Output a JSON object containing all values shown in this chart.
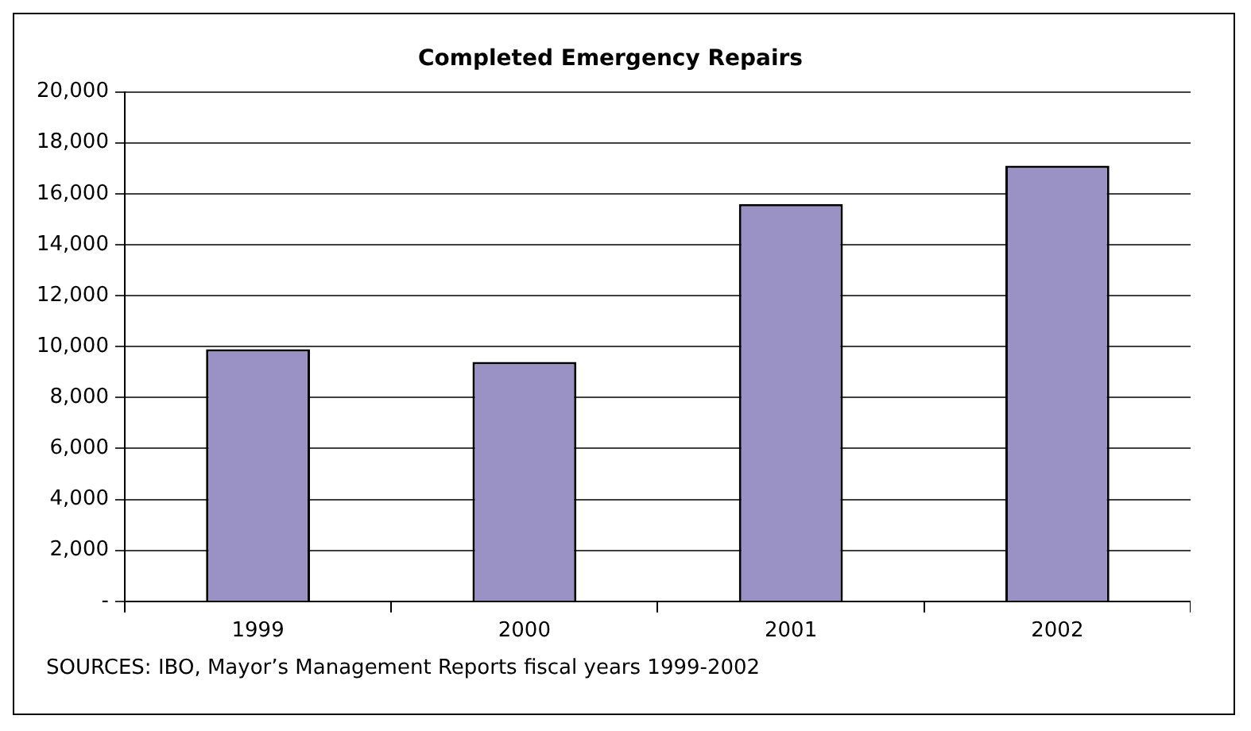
{
  "chart_data": {
    "type": "bar",
    "title": "Completed Emergency Repairs",
    "categories": [
      "1999",
      "2000",
      "2001",
      "2002"
    ],
    "values": [
      9900,
      9400,
      15600,
      17100
    ],
    "color": "#9a91c4",
    "ylim": [
      0,
      20000
    ],
    "yticks": [
      {
        "value": 0,
        "label": "-"
      },
      {
        "value": 2000,
        "label": "2,000"
      },
      {
        "value": 4000,
        "label": "4,000"
      },
      {
        "value": 6000,
        "label": "6,000"
      },
      {
        "value": 8000,
        "label": "8,000"
      },
      {
        "value": 10000,
        "label": "10,000"
      },
      {
        "value": 12000,
        "label": "12,000"
      },
      {
        "value": 14000,
        "label": "14,000"
      },
      {
        "value": 16000,
        "label": "16,000"
      },
      {
        "value": 18000,
        "label": "18,000"
      },
      {
        "value": 20000,
        "label": "20,000"
      }
    ],
    "grid": "y",
    "annotations": [
      "SOURCES: IBO, Mayor’s Management Reports fiscal years 1999-2002"
    ]
  }
}
